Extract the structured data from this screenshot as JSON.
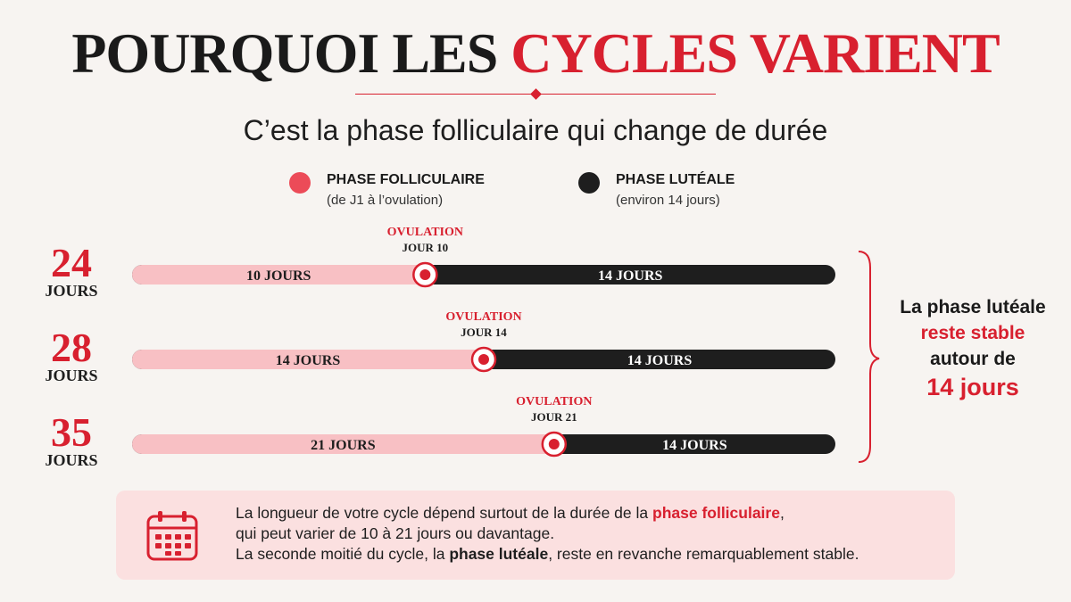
{
  "title": {
    "part1": "POURQUOI LES",
    "part2": "CYCLES VARIENT"
  },
  "subtitle": "C’est la phase folliculaire qui change de durée",
  "colors": {
    "accent": "#d8202f",
    "follicular": "#f8c0c4",
    "luteal": "#1e1e1e",
    "legend_follicular": "#ec4b58",
    "background": "#f7f4f1",
    "note_bg": "#fbe0e0"
  },
  "legend": [
    {
      "label": "PHASE FOLLICULAIRE",
      "sub": "(de J1 à l’ovulation)"
    },
    {
      "label": "PHASE LUTÉALE",
      "sub": "(environ 14 jours)"
    }
  ],
  "chart_data": {
    "type": "bar",
    "orientation": "horizontal-stacked",
    "categories": [
      "24",
      "28",
      "35"
    ],
    "category_unit": "JOURS",
    "series": [
      {
        "name": "PHASE FOLLICULAIRE",
        "values": [
          10,
          14,
          21
        ]
      },
      {
        "name": "PHASE LUTÉALE",
        "values": [
          14,
          14,
          14
        ]
      }
    ],
    "segment_labels": [
      [
        "10 JOURS",
        "14 JOURS"
      ],
      [
        "14 JOURS",
        "14 JOURS"
      ],
      [
        "21 JOURS",
        "14 JOURS"
      ]
    ],
    "markers": [
      {
        "label": "OVULATION",
        "day_label": "JOUR 10",
        "day": 10
      },
      {
        "label": "OVULATION",
        "day_label": "JOUR 14",
        "day": 14
      },
      {
        "label": "OVULATION",
        "day_label": "JOUR 21",
        "day": 21
      }
    ]
  },
  "callout": {
    "line1": "La phase lutéale",
    "line2": "reste stable",
    "line3": "autour de",
    "line4": "14 jours"
  },
  "note": {
    "l1_before": "La longueur de votre cycle dépend surtout de la durée de la ",
    "l1_highlight": "phase folliculaire",
    "l1_after": ",",
    "l2": "qui peut varier de 10 à 21 jours ou davantage.",
    "l3_before": "La seconde moitié du cycle, la ",
    "l3_bold": "phase lutéale",
    "l3_after": ", reste en revanche remarquablement stable."
  }
}
